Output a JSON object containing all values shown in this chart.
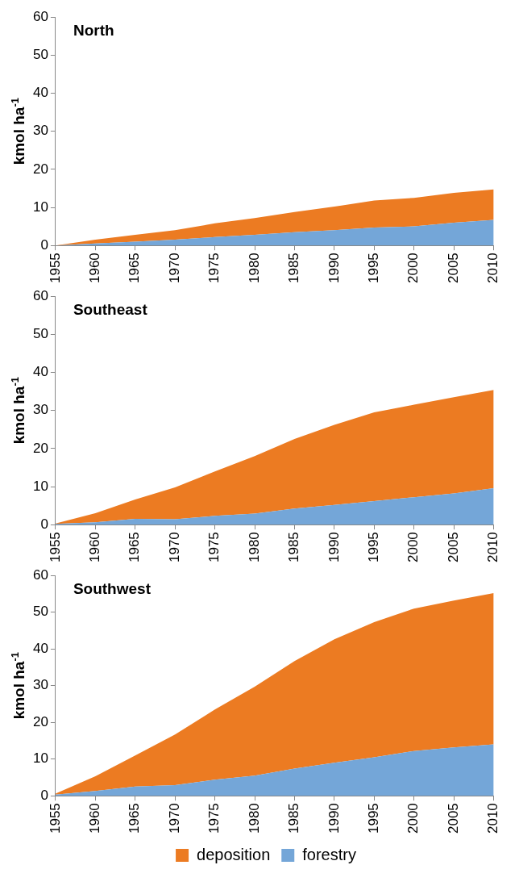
{
  "chart_data": [
    {
      "type": "area",
      "title": "North",
      "ylabel": "kmol ha$^{-1}$",
      "stacked": true,
      "grid": false,
      "legend": false,
      "x": [
        1955,
        1960,
        1965,
        1970,
        1975,
        1980,
        1985,
        1990,
        1995,
        2000,
        2005,
        2010
      ],
      "xlim": [
        1955,
        2010
      ],
      "xticks": [
        1955,
        1960,
        1965,
        1970,
        1975,
        1980,
        1985,
        1990,
        1995,
        2000,
        2005,
        2010
      ],
      "ylim": [
        0,
        60
      ],
      "yticks": [
        0,
        10,
        20,
        30,
        40,
        50,
        60
      ],
      "series": [
        {
          "color": "#74a6d8",
          "values": [
            0,
            0.5,
            1,
            1.5,
            2.2,
            2.8,
            3.5,
            4,
            4.7,
            5,
            6,
            6.7
          ]
        },
        {
          "color": "#ec7b22",
          "values": [
            0,
            1.0,
            1.8,
            2.5,
            3.6,
            4.4,
            5.3,
            6.2,
            7.1,
            7.5,
            7.8,
            8.0
          ]
        }
      ]
    },
    {
      "type": "area",
      "title": "Southeast",
      "ylabel": "kmol ha$^{-1}$",
      "stacked": true,
      "grid": false,
      "legend": false,
      "x": [
        1955,
        1960,
        1965,
        1970,
        1975,
        1980,
        1985,
        1990,
        1995,
        2000,
        2005,
        2010
      ],
      "xlim": [
        1955,
        2010
      ],
      "xticks": [
        1955,
        1960,
        1965,
        1970,
        1975,
        1980,
        1985,
        1990,
        1995,
        2000,
        2005,
        2010
      ],
      "ylim": [
        0,
        60
      ],
      "yticks": [
        0,
        10,
        20,
        30,
        40,
        50,
        60
      ],
      "series": [
        {
          "color": "#74a6d8",
          "values": [
            0.2,
            0.6,
            1.5,
            1.4,
            2.3,
            2.9,
            4.2,
            5.2,
            6.2,
            7.2,
            8.2,
            9.6
          ]
        },
        {
          "color": "#ec7b22",
          "values": [
            0.1,
            2.4,
            5.1,
            8.4,
            11.7,
            15.1,
            18.3,
            21.0,
            23.3,
            24.3,
            25.3,
            25.8
          ]
        }
      ]
    },
    {
      "type": "area",
      "title": "Southwest",
      "ylabel": "kmol ha$^{-1}$",
      "stacked": true,
      "grid": false,
      "legend": "bottom",
      "x": [
        1955,
        1960,
        1965,
        1970,
        1975,
        1980,
        1985,
        1990,
        1995,
        2000,
        2005,
        2010
      ],
      "xlim": [
        1955,
        2010
      ],
      "xticks": [
        1955,
        1960,
        1965,
        1970,
        1975,
        1980,
        1985,
        1990,
        1995,
        2000,
        2005,
        2010
      ],
      "ylim": [
        0,
        60
      ],
      "yticks": [
        0,
        10,
        20,
        30,
        40,
        50,
        60
      ],
      "series": [
        {
          "name": "forestry",
          "color": "#74a6d8",
          "values": [
            0.3,
            1.3,
            2.5,
            2.9,
            4.4,
            5.5,
            7.4,
            9,
            10.5,
            12.2,
            13.2,
            14
          ]
        },
        {
          "name": "deposition",
          "color": "#ec7b22",
          "values": [
            0.3,
            4.0,
            8.5,
            13.8,
            19.1,
            24.2,
            29.3,
            33.6,
            36.8,
            38.8,
            40.0,
            41.2
          ]
        }
      ]
    }
  ]
}
